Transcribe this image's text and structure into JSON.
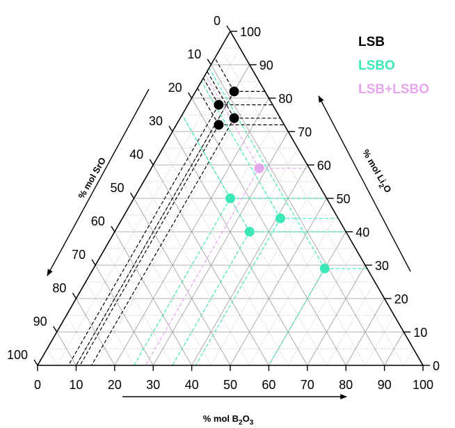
{
  "chart_data": {
    "type": "scatter",
    "subtype": "ternary",
    "axes": {
      "bottom": {
        "label_prefix": "% mol B",
        "label_sub1": "2",
        "label_mid": "O",
        "label_sub2": "3",
        "range": [
          0,
          100
        ]
      },
      "right": {
        "label_prefix": "% mol Li",
        "label_sub": "2",
        "label_suffix": "O",
        "range": [
          0,
          100
        ]
      },
      "left": {
        "label": "% mol SrO",
        "range": [
          0,
          100
        ]
      }
    },
    "ticks": [
      "0",
      "10",
      "20",
      "30",
      "40",
      "50",
      "60",
      "70",
      "80",
      "90",
      "100"
    ],
    "grid": true,
    "legend_position": "top-right",
    "series": [
      {
        "name": "LSB",
        "color": "#000000",
        "points": [
          {
            "B2O3": 10,
            "Li2O": 82
          },
          {
            "B2O3": 8,
            "Li2O": 78
          },
          {
            "B2O3": 14,
            "Li2O": 74
          },
          {
            "B2O3": 11,
            "Li2O": 72
          }
        ]
      },
      {
        "name": "LSBO",
        "color": "#3ce8b8",
        "points": [
          {
            "B2O3": 25,
            "Li2O": 50
          },
          {
            "B2O3": 41,
            "Li2O": 44
          },
          {
            "B2O3": 35,
            "Li2O": 40
          },
          {
            "B2O3": 60,
            "Li2O": 29
          }
        ]
      },
      {
        "name": "LSB+LSBO",
        "color": "#e5a6ec",
        "points": [
          {
            "B2O3": 28,
            "Li2O": 59
          }
        ]
      }
    ]
  }
}
